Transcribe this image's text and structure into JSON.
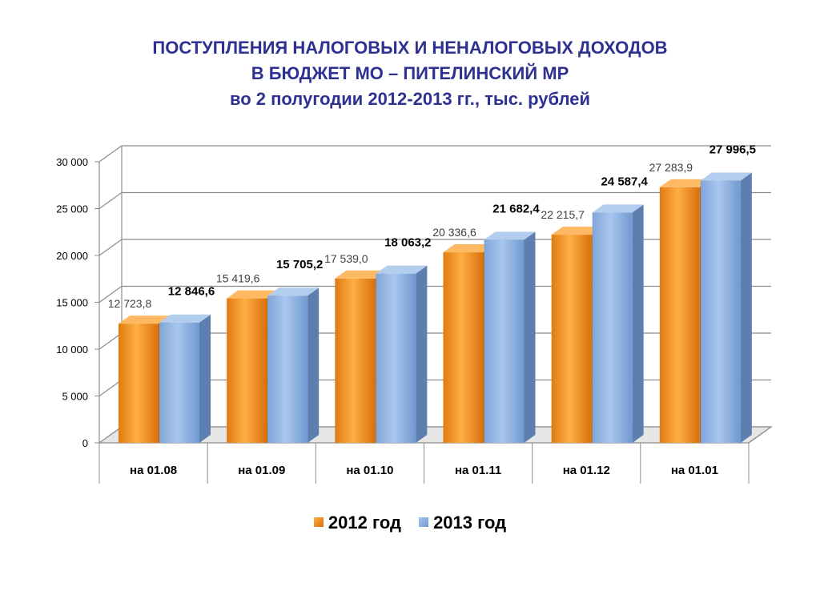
{
  "title": {
    "line1": "ПОСТУПЛЕНИЯ НАЛОГОВЫХ И НЕНАЛОГОВЫХ ДОХОДОВ",
    "line2": "В БЮДЖЕТ МО – ПИТЕЛИНСКИЙ МР",
    "line3": "во 2 полугодии 2012-2013 гг., тыс. рублей"
  },
  "colors": {
    "series_2012": "#f7941d",
    "series_2013": "#8eb4e3",
    "title": "#2e3192"
  },
  "chart_data": {
    "type": "bar",
    "title": "ПОСТУПЛЕНИЯ НАЛОГОВЫХ И НЕНАЛОГОВЫХ ДОХОДОВ В БЮДЖЕТ МО – ПИТЕЛИНСКИЙ МР во 2 полугодии 2012-2013 гг., тыс. рублей",
    "categories": [
      "на 01.08",
      "на 01.09",
      "на 01.10",
      "на 01.11",
      "на 01.12",
      "на 01.01"
    ],
    "series": [
      {
        "name": "2012 год",
        "values": [
          12723.8,
          15419.6,
          17539.0,
          20336.6,
          22215.7,
          27283.9
        ],
        "labels": [
          "12 723,8",
          "15 419,6",
          "17 539,0",
          "20 336,6",
          "22 215,7",
          "27 283,9"
        ]
      },
      {
        "name": "2013 год",
        "values": [
          12846.6,
          15705.2,
          18063.2,
          21682.4,
          24587.4,
          27996.5
        ],
        "labels": [
          "12 846,6",
          "15 705,2",
          "18 063,2",
          "21 682,4",
          "24 587,4",
          "27 996,5"
        ]
      }
    ],
    "ylim": [
      0,
      30000
    ],
    "yticks": [
      0,
      5000,
      10000,
      15000,
      20000,
      25000,
      30000
    ],
    "ytick_labels": [
      "0",
      "5 000",
      "10 000",
      "15 000",
      "20 000",
      "25 000",
      "30 000"
    ],
    "xlabel": "",
    "ylabel": "",
    "grid": true,
    "legend": "bottom"
  }
}
